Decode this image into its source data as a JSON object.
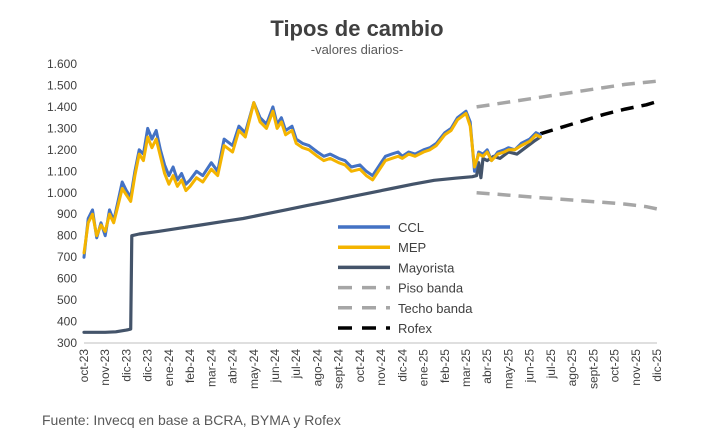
{
  "chart_data": {
    "type": "line",
    "title": "Tipos de cambio",
    "subtitle": "-valores diarios-",
    "ylim": [
      300,
      1600
    ],
    "yticks": [
      "300",
      "400",
      "500",
      "600",
      "700",
      "800",
      "900",
      "1.000",
      "1.100",
      "1.200",
      "1.300",
      "1.400",
      "1.500",
      "1.600"
    ],
    "ytick_values": [
      300,
      400,
      500,
      600,
      700,
      800,
      900,
      1000,
      1100,
      1200,
      1300,
      1400,
      1500,
      1600
    ],
    "categories": [
      "oct-23",
      "nov-23",
      "dic-23",
      "dic-23",
      "ene-24",
      "feb-24",
      "mar-24",
      "abr-24",
      "may-24",
      "jun-24",
      "jul-24",
      "ago-24",
      "sept-24",
      "oct-24",
      "nov-24",
      "dic-24",
      "ene-25",
      "feb-25",
      "mar-25",
      "abr-25",
      "may-25",
      "jun-25",
      "jul-25",
      "ago-25",
      "sept-25",
      "oct-25",
      "nov-25",
      "dic-25"
    ],
    "grid": false,
    "legend_position": "center",
    "series": [
      {
        "name": "CCL",
        "color": "#4472C4",
        "style": "solid",
        "x": [
          0,
          0.2,
          0.4,
          0.6,
          0.8,
          1.0,
          1.2,
          1.4,
          1.6,
          1.8,
          2.0,
          2.2,
          2.4,
          2.6,
          2.8,
          3.0,
          3.2,
          3.4,
          3.6,
          3.8,
          4.0,
          4.2,
          4.4,
          4.6,
          4.8,
          5.0,
          5.3,
          5.6,
          6.0,
          6.3,
          6.6,
          7.0,
          7.3,
          7.6,
          8.0,
          8.3,
          8.6,
          8.9,
          9.1,
          9.3,
          9.5,
          9.8,
          10.0,
          10.3,
          10.6,
          11.0,
          11.3,
          11.6,
          12.0,
          12.3,
          12.6,
          13.0,
          13.3,
          13.6,
          14.0,
          14.2,
          14.5,
          14.8,
          15.0,
          15.3,
          15.6,
          16.0,
          16.3,
          16.6,
          17.0,
          17.3,
          17.6,
          18.0,
          18.2,
          18.4,
          18.6,
          18.8,
          19.0,
          19.2,
          19.5,
          19.8,
          20.0,
          20.3,
          20.6,
          21.0,
          21.3,
          21.5
        ],
        "values": [
          700,
          880,
          920,
          790,
          860,
          800,
          920,
          870,
          960,
          1050,
          1010,
          980,
          1100,
          1200,
          1180,
          1300,
          1250,
          1290,
          1200,
          1130,
          1080,
          1120,
          1060,
          1090,
          1040,
          1060,
          1100,
          1080,
          1140,
          1100,
          1250,
          1220,
          1310,
          1280,
          1420,
          1350,
          1320,
          1400,
          1320,
          1350,
          1290,
          1310,
          1250,
          1230,
          1220,
          1190,
          1170,
          1180,
          1160,
          1150,
          1120,
          1130,
          1100,
          1080,
          1140,
          1170,
          1180,
          1190,
          1170,
          1190,
          1180,
          1200,
          1210,
          1230,
          1280,
          1300,
          1350,
          1380,
          1330,
          1100,
          1190,
          1180,
          1200,
          1150,
          1190,
          1200,
          1210,
          1200,
          1230,
          1250,
          1280,
          1270
        ]
      },
      {
        "name": "MEP",
        "color": "#F4B400",
        "style": "solid",
        "x": [
          0,
          0.2,
          0.4,
          0.6,
          0.8,
          1.0,
          1.2,
          1.4,
          1.6,
          1.8,
          2.0,
          2.2,
          2.4,
          2.6,
          2.8,
          3.0,
          3.2,
          3.4,
          3.6,
          3.8,
          4.0,
          4.2,
          4.4,
          4.6,
          4.8,
          5.0,
          5.3,
          5.6,
          6.0,
          6.3,
          6.6,
          7.0,
          7.3,
          7.6,
          8.0,
          8.3,
          8.6,
          8.9,
          9.1,
          9.3,
          9.5,
          9.8,
          10.0,
          10.3,
          10.6,
          11.0,
          11.3,
          11.6,
          12.0,
          12.3,
          12.6,
          13.0,
          13.3,
          13.6,
          14.0,
          14.2,
          14.5,
          14.8,
          15.0,
          15.3,
          15.6,
          16.0,
          16.3,
          16.6,
          17.0,
          17.3,
          17.6,
          18.0,
          18.2,
          18.4,
          18.6,
          18.8,
          19.0,
          19.2,
          19.5,
          19.8,
          20.0,
          20.3,
          20.6,
          21.0,
          21.3,
          21.5
        ],
        "values": [
          720,
          860,
          900,
          800,
          850,
          820,
          900,
          860,
          940,
          1020,
          990,
          960,
          1080,
          1180,
          1150,
          1260,
          1210,
          1250,
          1170,
          1090,
          1040,
          1080,
          1030,
          1060,
          1010,
          1030,
          1070,
          1050,
          1110,
          1080,
          1220,
          1190,
          1290,
          1260,
          1420,
          1330,
          1300,
          1380,
          1300,
          1330,
          1270,
          1290,
          1230,
          1210,
          1200,
          1170,
          1150,
          1160,
          1140,
          1130,
          1100,
          1110,
          1080,
          1060,
          1120,
          1150,
          1160,
          1170,
          1160,
          1180,
          1170,
          1190,
          1200,
          1220,
          1270,
          1290,
          1340,
          1370,
          1310,
          1120,
          1180,
          1170,
          1190,
          1150,
          1180,
          1190,
          1200,
          1200,
          1220,
          1240,
          1270,
          1260
        ]
      },
      {
        "name": "Mayorista",
        "color": "#44546A",
        "style": "solid",
        "x": [
          0,
          1.0,
          1.5,
          2.0,
          2.2,
          2.25,
          2.6,
          3.5,
          4.5,
          5.5,
          6.5,
          7.5,
          8.5,
          9.5,
          10.5,
          11.5,
          12.5,
          13.5,
          14.5,
          15.5,
          16.5,
          17.5,
          18.3,
          18.5,
          18.6,
          18.7,
          18.8,
          19.0,
          19.3,
          19.6,
          20.0,
          20.4,
          20.8,
          21.2,
          21.5
        ],
        "values": [
          350,
          350,
          352,
          360,
          365,
          800,
          808,
          820,
          835,
          850,
          865,
          880,
          900,
          920,
          940,
          960,
          980,
          1000,
          1020,
          1040,
          1058,
          1068,
          1075,
          1080,
          1140,
          1070,
          1160,
          1150,
          1170,
          1160,
          1190,
          1180,
          1210,
          1240,
          1260
        ]
      },
      {
        "name": "Piso banda",
        "color": "#A6A6A6",
        "style": "dashed",
        "x": [
          18.5,
          19.5,
          20.5,
          21.5,
          22.5,
          23.5,
          24.5,
          25.5,
          26.5,
          27.0
        ],
        "values": [
          1000,
          993,
          985,
          977,
          970,
          962,
          955,
          947,
          935,
          925
        ]
      },
      {
        "name": "Techo banda",
        "color": "#A6A6A6",
        "style": "dashed",
        "x": [
          18.5,
          19.5,
          20.5,
          21.5,
          22.5,
          23.5,
          24.5,
          25.5,
          26.5,
          27.0
        ],
        "values": [
          1400,
          1415,
          1430,
          1445,
          1460,
          1475,
          1490,
          1505,
          1515,
          1520
        ]
      },
      {
        "name": "Rofex",
        "color": "#000000",
        "style": "dashed",
        "x": [
          21.5,
          22.5,
          23.5,
          24.5,
          25.5,
          26.5,
          27.0
        ],
        "values": [
          1275,
          1305,
          1335,
          1365,
          1390,
          1410,
          1425
        ]
      }
    ],
    "source": "Fuente: Invecq en base a BCRA, BYMA y Rofex"
  }
}
